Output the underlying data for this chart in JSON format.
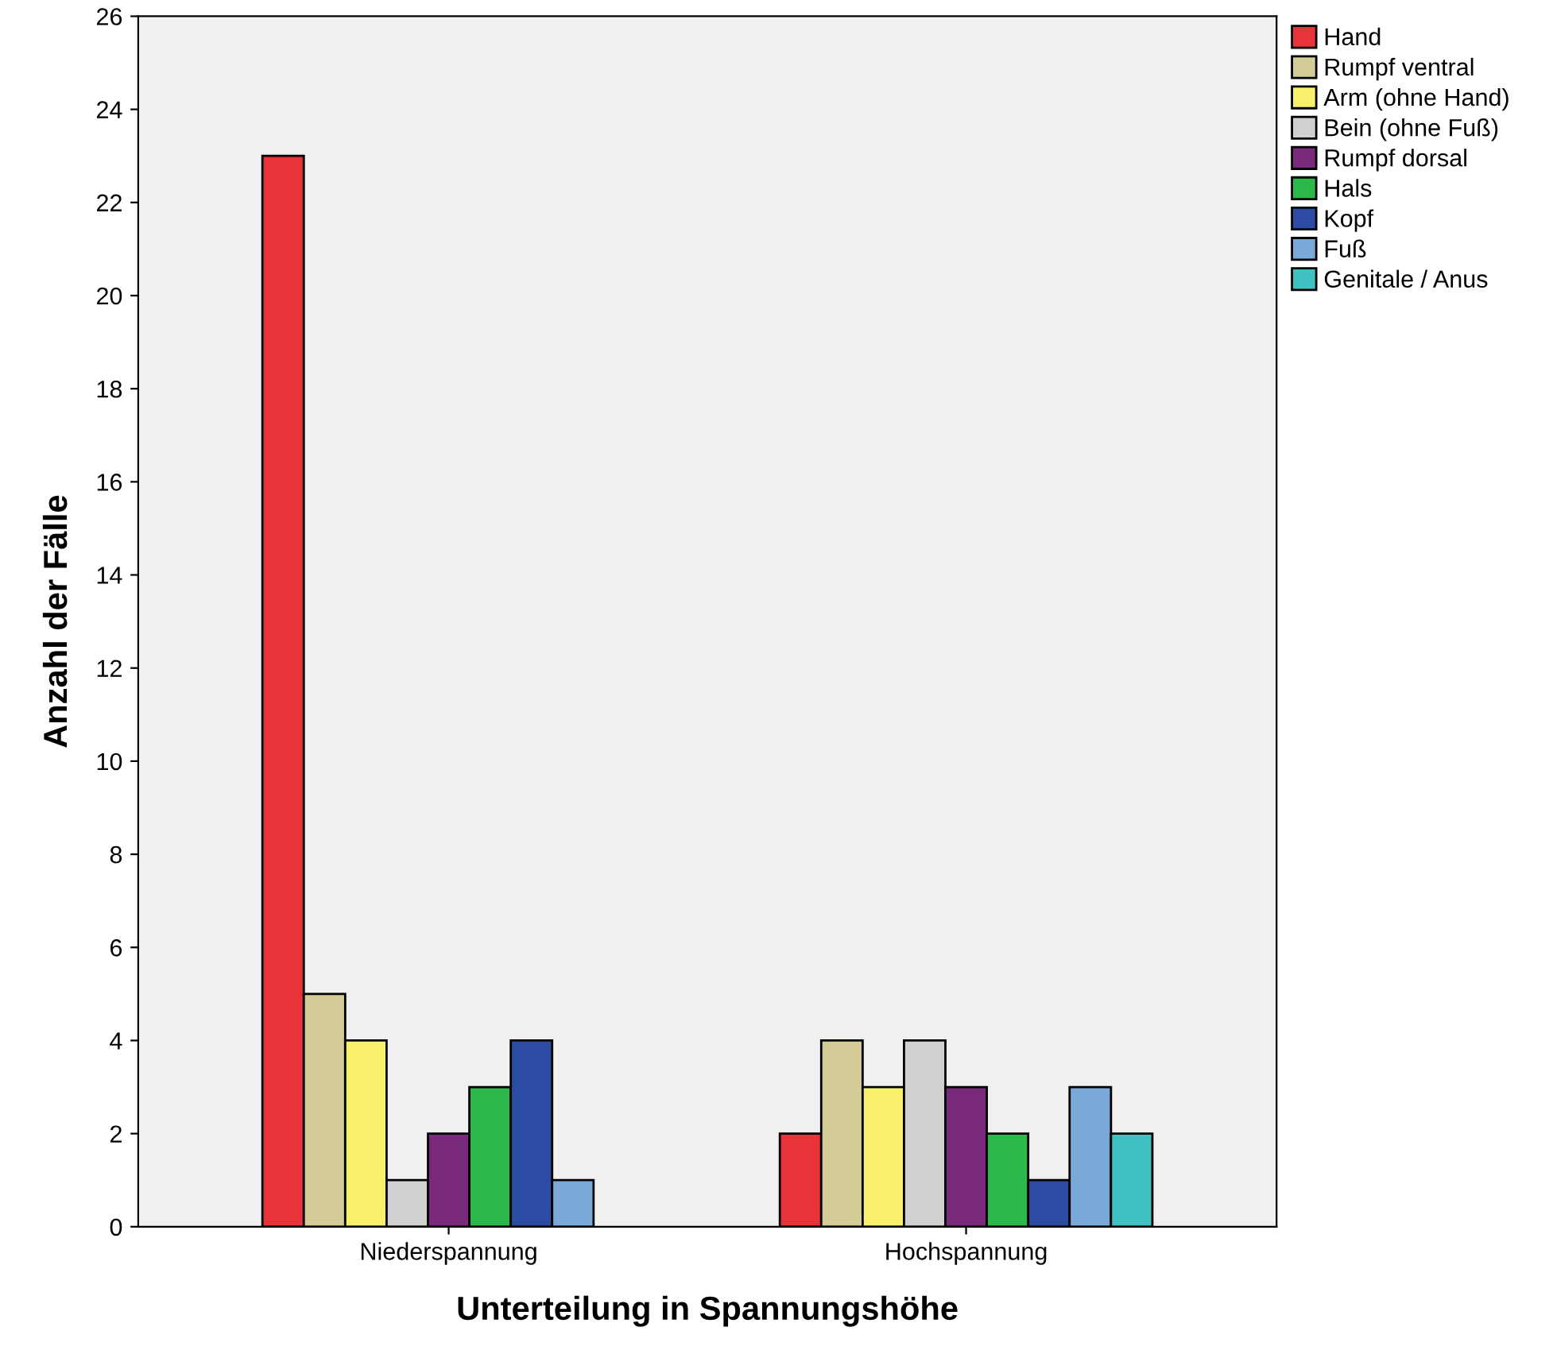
{
  "chart_data": {
    "type": "bar",
    "xlabel": "Unterteilung in Spannungshöhe",
    "ylabel": "Anzahl der Fälle",
    "categories": [
      "Niederspannung",
      "Hochspannung"
    ],
    "series": [
      {
        "name": "Hand",
        "color": "#e8333a",
        "values": [
          23,
          2
        ]
      },
      {
        "name": "Rumpf ventral",
        "color": "#d4cc96",
        "values": [
          5,
          4
        ]
      },
      {
        "name": "Arm (ohne Hand)",
        "color": "#f8f06a",
        "values": [
          4,
          3
        ]
      },
      {
        "name": "Bein (ohne Fuß)",
        "color": "#d0d0d0",
        "values": [
          1,
          4
        ]
      },
      {
        "name": "Rumpf dorsal",
        "color": "#7a2a7a",
        "values": [
          2,
          3
        ]
      },
      {
        "name": "Hals",
        "color": "#2db84c",
        "values": [
          3,
          2
        ]
      },
      {
        "name": "Kopf",
        "color": "#2c4ca4",
        "values": [
          4,
          1
        ]
      },
      {
        "name": "Fuß",
        "color": "#7aa8d8",
        "values": [
          1,
          3
        ]
      },
      {
        "name": "Genitale / Anus",
        "color": "#40c0c0",
        "values": [
          null,
          2
        ]
      }
    ],
    "ylim": [
      0,
      26
    ],
    "yticks": [
      0,
      2,
      4,
      6,
      8,
      10,
      12,
      14,
      16,
      18,
      20,
      22,
      24,
      26
    ],
    "grid": false,
    "legend": "top right"
  }
}
